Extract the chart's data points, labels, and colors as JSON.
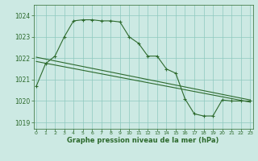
{
  "line1": {
    "x": [
      0,
      1,
      2,
      3,
      4,
      5,
      6,
      7,
      8,
      9,
      10,
      11,
      12,
      13,
      14,
      15,
      16,
      17,
      18,
      19,
      20,
      21,
      22,
      23
    ],
    "y": [
      1020.7,
      1021.75,
      1022.1,
      1023.0,
      1023.75,
      1023.8,
      1023.8,
      1023.75,
      1023.75,
      1023.7,
      1023.0,
      1022.7,
      1022.1,
      1022.1,
      1021.5,
      1021.3,
      1020.1,
      1019.4,
      1019.3,
      1019.3,
      1020.05,
      1020.0,
      1020.0,
      1020.0
    ]
  },
  "line2": {
    "x": [
      0,
      23
    ],
    "y": [
      1021.85,
      1019.95
    ]
  },
  "line3": {
    "x": [
      0,
      23
    ],
    "y": [
      1022.05,
      1020.05
    ]
  },
  "ylim": [
    1018.7,
    1024.5
  ],
  "yticks": [
    1019,
    1020,
    1021,
    1022,
    1023,
    1024
  ],
  "xlim": [
    -0.3,
    23.3
  ],
  "xticks": [
    0,
    1,
    2,
    3,
    4,
    5,
    6,
    7,
    8,
    9,
    10,
    11,
    12,
    13,
    14,
    15,
    16,
    17,
    18,
    19,
    20,
    21,
    22,
    23
  ],
  "xlabel": "Graphe pression niveau de la mer (hPa)",
  "line_color": "#2d6a2d",
  "bg_color": "#cce9e3",
  "grid_color": "#8ec8be",
  "marker": "+",
  "marker_size": 3.5,
  "marker_edge_width": 0.8,
  "linewidth": 0.8,
  "ytick_fontsize": 5.5,
  "xtick_fontsize": 4.5,
  "xlabel_fontsize": 6.0
}
